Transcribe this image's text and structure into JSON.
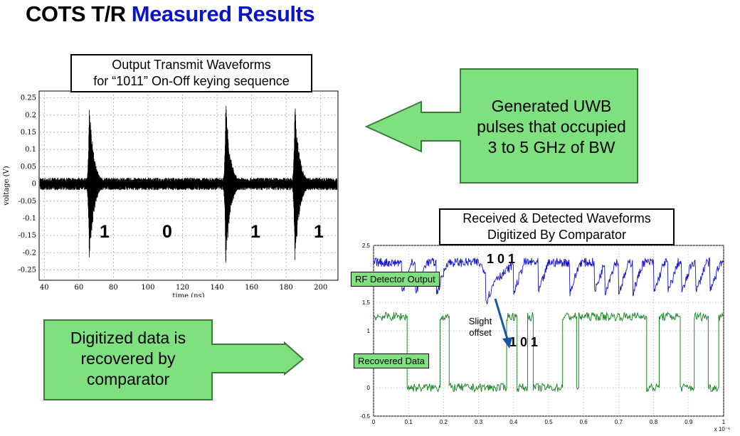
{
  "slide": {
    "title_black": "COTS T/R",
    "title_blue": "Measured Results",
    "top_callout_line1": "Output Transmit Waveforms",
    "top_callout_line2": "for “1011” On-Off keying sequence",
    "top_bits": [
      "1",
      "0",
      "1",
      "1"
    ],
    "uwb_arrow_line1": "Generated UWB",
    "uwb_arrow_line2": "pulses that occupied",
    "uwb_arrow_line3": "3 to 5 GHz of BW",
    "digital_arrow_line1": "Digitized data is",
    "digital_arrow_line2": "recovered by",
    "digital_arrow_line3": "comparator",
    "bottom_callout_line1": "Received & Detected Waveforms",
    "bottom_callout_line2": "Digitized By Comparator",
    "rf_label": "RF Detector Output",
    "recovered_label": "Recovered Data",
    "rf_bits": "1 0 1",
    "rec_bits": "1 0 1",
    "offset_note_line1": "Slight",
    "offset_note_line2": "offset",
    "green_fill": "#7ee07e",
    "blue_trace": "#1414d2",
    "green_trace": "#1f8a2a",
    "title_blue_color": "#0a14c8"
  },
  "chart_data": [
    {
      "type": "line",
      "xlabel": "time (ns)",
      "ylabel": "voltage (V)",
      "xlim": [
        37,
        210
      ],
      "ylim": [
        -0.28,
        0.27
      ],
      "xticks": [
        40,
        60,
        80,
        100,
        120,
        140,
        160,
        180,
        200
      ],
      "yticks": [
        0.25,
        0.2,
        0.15,
        0.1,
        0.05,
        0,
        -0.05,
        -0.1,
        -0.15,
        -0.2,
        -0.25
      ],
      "grid": true,
      "noise_amplitude": 0.012,
      "pulses": [
        {
          "center": 66,
          "amplitude": 0.25
        },
        {
          "center": 145,
          "amplitude": 0.25
        },
        {
          "center": 185,
          "amplitude": 0.25
        }
      ]
    },
    {
      "type": "line",
      "xlim": [
        0,
        1
      ],
      "ylim": [
        -0.5,
        2.5
      ],
      "x_multiplier": "x 10⁻⁶",
      "xticks": [
        "0",
        "0.1",
        "0.2",
        "0.3",
        "0.4",
        "0.5",
        "0.6",
        "0.7",
        "0.8",
        "0.9",
        "1"
      ],
      "yticks": [
        "2.5",
        "1.5",
        "1",
        "0",
        "-0.5"
      ],
      "grid": true,
      "series": [
        {
          "baseline": 2.2,
          "noise": 0.08
        },
        {
          "high": 1.25,
          "low": 0.0,
          "high_intervals": [
            [
              0,
              0.095
            ],
            [
              0.19,
              0.215
            ],
            [
              0.38,
              0.41
            ],
            [
              0.44,
              0.455
            ],
            [
              0.54,
              0.58
            ],
            [
              0.585,
              0.78
            ],
            [
              0.815,
              0.875
            ],
            [
              0.915,
              0.955
            ],
            [
              0.985,
              1
            ]
          ]
        }
      ]
    }
  ]
}
